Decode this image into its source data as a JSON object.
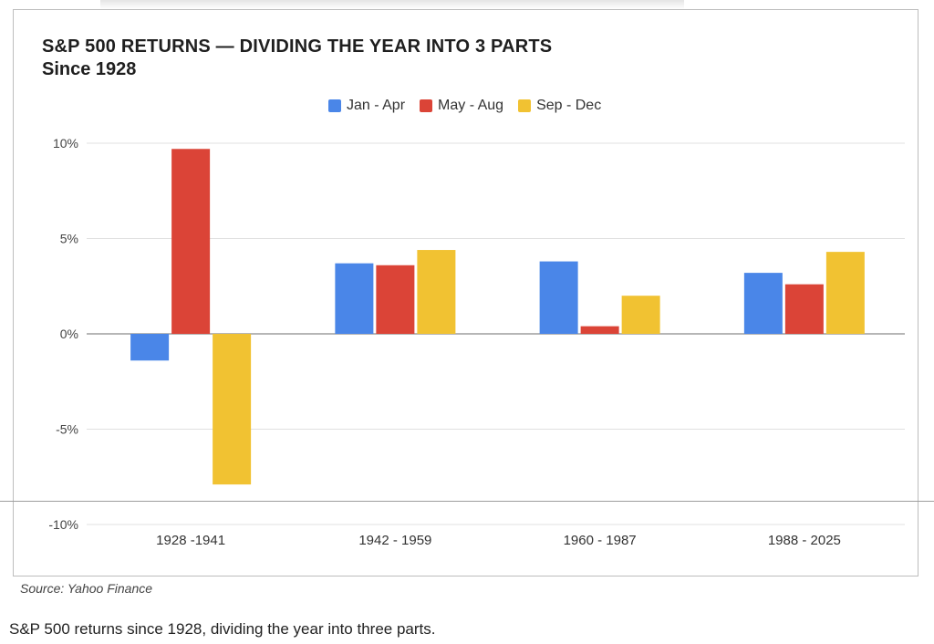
{
  "page": {
    "title": "S&P 500 RETURNS — DIVIDING THE YEAR INTO 3 PARTS",
    "subtitle": "Since 1928",
    "source": "Source: Yahoo Finance",
    "caption": "S&P 500 returns since 1928, dividing the year into three parts."
  },
  "chart_data": {
    "type": "bar",
    "title": "S&P 500 RETURNS — DIVIDING THE YEAR INTO 3 PARTS",
    "subtitle": "Since 1928",
    "xlabel": "",
    "ylabel": "",
    "categories": [
      "1928 -1941",
      "1942 - 1959",
      "1960 - 1987",
      "1988 - 2025"
    ],
    "series": [
      {
        "name": "Jan - Apr",
        "color": "#4a86e8",
        "values": [
          -1.4,
          3.7,
          3.8,
          3.2
        ]
      },
      {
        "name": "May - Aug",
        "color": "#db4437",
        "values": [
          9.7,
          3.6,
          0.4,
          2.6
        ]
      },
      {
        "name": "Sep - Dec",
        "color": "#f1c232",
        "values": [
          -7.9,
          4.4,
          2.0,
          4.3
        ]
      }
    ],
    "ylim": [
      -10,
      10
    ],
    "yticks": [
      10,
      5,
      0,
      -5,
      -10
    ],
    "ytick_labels": [
      "10%",
      "5%",
      "0%",
      "-5%",
      "-10%"
    ],
    "grid": true,
    "legend": "top-center"
  }
}
